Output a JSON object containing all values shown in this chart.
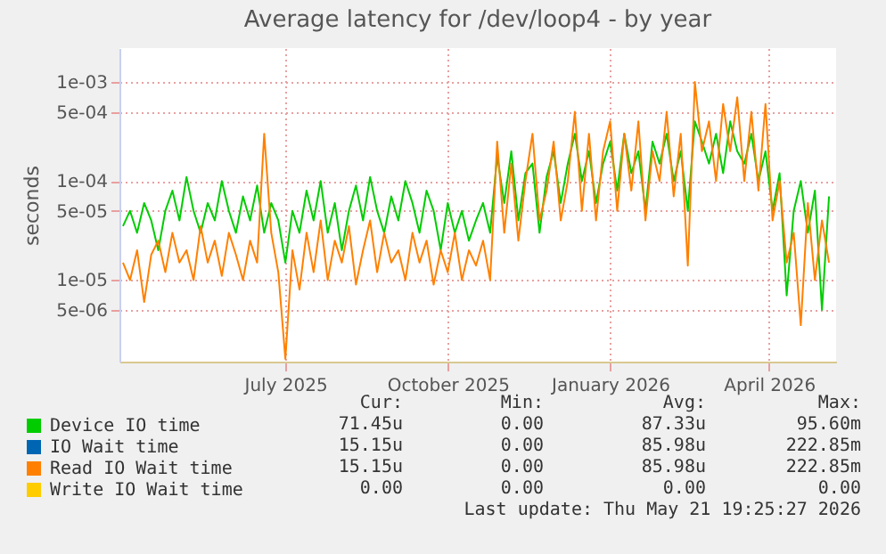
{
  "chart_data": {
    "type": "line",
    "title": "Average latency for /dev/loop4 - by year",
    "ylabel": "seconds",
    "log": true,
    "grid": true,
    "legend": "bottom",
    "xlim": [
      "2025-03-29",
      "2026-05-09"
    ],
    "xticks": [
      {
        "value": "2025-07-01",
        "label": "July 2025"
      },
      {
        "value": "2025-10-01",
        "label": "October 2025"
      },
      {
        "value": "2026-01-01",
        "label": "January 2026"
      },
      {
        "value": "2026-04-01",
        "label": "April 2026"
      }
    ],
    "ylim": [
      1.5e-06,
      0.0022
    ],
    "yticks": [
      {
        "value": 5e-06,
        "label": "5e-06"
      },
      {
        "value": 1e-05,
        "label": "1e-05"
      },
      {
        "value": 5e-05,
        "label": "5e-05"
      },
      {
        "value": 0.0001,
        "label": "1e-04"
      },
      {
        "value": 0.0005,
        "label": "5e-04"
      },
      {
        "value": 0.001,
        "label": "1e-03"
      }
    ],
    "x": [
      "2025-03-31",
      "2025-04-04",
      "2025-04-08",
      "2025-04-12",
      "2025-04-16",
      "2025-04-20",
      "2025-04-24",
      "2025-04-28",
      "2025-05-02",
      "2025-05-06",
      "2025-05-10",
      "2025-05-14",
      "2025-05-18",
      "2025-05-22",
      "2025-05-26",
      "2025-05-30",
      "2025-06-03",
      "2025-06-07",
      "2025-06-11",
      "2025-06-15",
      "2025-06-19",
      "2025-06-23",
      "2025-06-27",
      "2025-07-01",
      "2025-07-05",
      "2025-07-09",
      "2025-07-13",
      "2025-07-17",
      "2025-07-21",
      "2025-07-25",
      "2025-07-29",
      "2025-08-02",
      "2025-08-06",
      "2025-08-10",
      "2025-08-14",
      "2025-08-18",
      "2025-08-22",
      "2025-08-26",
      "2025-08-30",
      "2025-09-03",
      "2025-09-07",
      "2025-09-11",
      "2025-09-15",
      "2025-09-19",
      "2025-09-23",
      "2025-09-27",
      "2025-10-01",
      "2025-10-05",
      "2025-10-09",
      "2025-10-13",
      "2025-10-17",
      "2025-10-21",
      "2025-10-25",
      "2025-10-29",
      "2025-11-02",
      "2025-11-06",
      "2025-11-10",
      "2025-11-14",
      "2025-11-18",
      "2025-11-22",
      "2025-11-26",
      "2025-11-30",
      "2025-12-04",
      "2025-12-08",
      "2025-12-12",
      "2025-12-16",
      "2025-12-20",
      "2025-12-24",
      "2025-12-28",
      "2026-01-01",
      "2026-01-05",
      "2026-01-09",
      "2026-01-13",
      "2026-01-17",
      "2026-01-21",
      "2026-01-25",
      "2026-01-29",
      "2026-02-02",
      "2026-02-06",
      "2026-02-10",
      "2026-02-14",
      "2026-02-18",
      "2026-02-22",
      "2026-02-26",
      "2026-03-02",
      "2026-03-06",
      "2026-03-10",
      "2026-03-14",
      "2026-03-18",
      "2026-03-22",
      "2026-03-26",
      "2026-03-30",
      "2026-04-03",
      "2026-04-07",
      "2026-04-11",
      "2026-04-15",
      "2026-04-19",
      "2026-04-23",
      "2026-04-27",
      "2026-05-01",
      "2026-05-05"
    ],
    "series": [
      {
        "name": "Device IO time",
        "color": "#00cc00",
        "values": [
          3.5e-05,
          5e-05,
          3e-05,
          6e-05,
          4e-05,
          2e-05,
          5e-05,
          8e-05,
          4e-05,
          0.00011,
          5e-05,
          3e-05,
          6e-05,
          4e-05,
          0.0001,
          5e-05,
          3e-05,
          7e-05,
          4e-05,
          9e-05,
          3e-05,
          6e-05,
          4e-05,
          1.5e-05,
          5e-05,
          3e-05,
          8e-05,
          4e-05,
          0.0001,
          3e-05,
          6e-05,
          2e-05,
          5e-05,
          9e-05,
          4e-05,
          0.00011,
          5e-05,
          3e-05,
          7e-05,
          4e-05,
          0.0001,
          6e-05,
          3e-05,
          8e-05,
          5e-05,
          2e-05,
          6e-05,
          3e-05,
          5e-05,
          2.5e-05,
          4e-05,
          6e-05,
          3e-05,
          0.00018,
          6e-05,
          0.0002,
          4e-05,
          0.00012,
          0.00015,
          3e-05,
          0.00011,
          0.0002,
          6e-05,
          0.00015,
          0.0003,
          0.0001,
          0.0002,
          6e-05,
          0.00015,
          0.00025,
          8e-05,
          0.0003,
          0.00012,
          0.0002,
          5e-05,
          0.00025,
          0.00015,
          0.0003,
          0.0001,
          0.0002,
          5e-05,
          0.0004,
          0.00025,
          0.00015,
          0.0003,
          0.00012,
          0.0004,
          0.0002,
          0.00015,
          0.0003,
          0.0001,
          0.0002,
          5e-05,
          0.00012,
          7e-06,
          5e-05,
          0.0001,
          3e-05,
          8e-05,
          5e-06,
          7e-05
        ]
      },
      {
        "name": "IO Wait time",
        "color": "#0066b3",
        "values": [
          null,
          null,
          null,
          null,
          null,
          null,
          null,
          null,
          null,
          null,
          null,
          null,
          null,
          null,
          null,
          null,
          null,
          null,
          null,
          null,
          null,
          null,
          null,
          null,
          null,
          null,
          null,
          null,
          null,
          null,
          null,
          null,
          null,
          null,
          null,
          null,
          null,
          null,
          null,
          null,
          null,
          null,
          null,
          null,
          null,
          null,
          null,
          null,
          null,
          null,
          null,
          null,
          null,
          null,
          null,
          null,
          null,
          null,
          null,
          null,
          null,
          null,
          null,
          null,
          null,
          null,
          null,
          null,
          null,
          null,
          null,
          null,
          null,
          null,
          null,
          null,
          null,
          null,
          null,
          null,
          null,
          null,
          null,
          null,
          null,
          null,
          null,
          null,
          null,
          null,
          null,
          null,
          null,
          null,
          null,
          null,
          null,
          null,
          null,
          null,
          null
        ]
      },
      {
        "name": "Read IO Wait time",
        "color": "#ff8000",
        "values": [
          1.5e-05,
          1e-05,
          2e-05,
          6e-06,
          1.8e-05,
          2.5e-05,
          1.2e-05,
          3e-05,
          1.5e-05,
          2e-05,
          1e-05,
          3.5e-05,
          1.5e-05,
          2.5e-05,
          1.1e-05,
          3e-05,
          1.8e-05,
          1e-05,
          2.5e-05,
          1.5e-05,
          0.0003,
          3e-05,
          1.2e-05,
          1.6e-06,
          2e-05,
          8e-06,
          3e-05,
          1.2e-05,
          4e-05,
          1e-05,
          2.5e-05,
          1.5e-05,
          3.5e-05,
          9e-06,
          2e-05,
          4e-05,
          1.2e-05,
          3e-05,
          1.5e-05,
          2e-05,
          1e-05,
          3e-05,
          1.5e-05,
          2.5e-05,
          9e-06,
          2e-05,
          1.2e-05,
          3e-05,
          1e-05,
          2e-05,
          1.4e-05,
          2.5e-05,
          1e-05,
          0.00025,
          3e-05,
          0.00015,
          2.5e-05,
          0.0001,
          0.0003,
          4e-05,
          8e-05,
          0.00025,
          4e-05,
          0.0001,
          0.0005,
          5e-05,
          0.0003,
          4e-05,
          0.0002,
          0.0004,
          5e-05,
          0.0003,
          8e-05,
          0.0004,
          4e-05,
          0.0002,
          0.0001,
          0.0005,
          7e-05,
          0.0003,
          1.4e-05,
          0.001,
          0.0002,
          0.0004,
          0.0001,
          0.0006,
          0.0002,
          0.0007,
          0.0001,
          0.0005,
          8e-05,
          0.0006,
          4e-05,
          0.0001,
          1.5e-05,
          3e-05,
          3.5e-06,
          6e-05,
          1e-05,
          4e-05,
          1.5e-05
        ]
      },
      {
        "name": "Write IO Wait time",
        "color": "#ffcc00",
        "values": [
          null,
          null,
          null,
          null,
          null,
          null,
          null,
          null,
          null,
          null,
          null,
          null,
          null,
          null,
          null,
          null,
          null,
          null,
          null,
          null,
          null,
          null,
          null,
          null,
          null,
          null,
          null,
          null,
          null,
          null,
          null,
          null,
          null,
          null,
          null,
          null,
          null,
          null,
          null,
          null,
          null,
          null,
          null,
          null,
          null,
          null,
          null,
          null,
          null,
          null,
          null,
          null,
          null,
          null,
          null,
          null,
          null,
          null,
          null,
          null,
          null,
          null,
          null,
          null,
          null,
          null,
          null,
          null,
          null,
          null,
          null,
          null,
          null,
          null,
          null,
          null,
          null,
          null,
          null,
          null,
          null,
          null,
          null,
          null,
          null,
          null,
          null,
          null,
          null,
          null,
          null,
          null,
          null,
          null,
          null,
          null,
          null,
          null,
          null,
          null,
          null
        ]
      }
    ],
    "annotations": [
      "Cur:",
      "Min:",
      "Avg:",
      "Max:",
      "71.45u",
      "0.00",
      "87.33u",
      "95.60m",
      "15.15u",
      "0.00",
      "85.98u",
      "222.85m",
      "15.15u",
      "0.00",
      "85.98u",
      "222.85m",
      "0.00",
      "0.00",
      "0.00",
      "0.00",
      "Last update: Thu May 21 19:25:27 2026"
    ]
  }
}
